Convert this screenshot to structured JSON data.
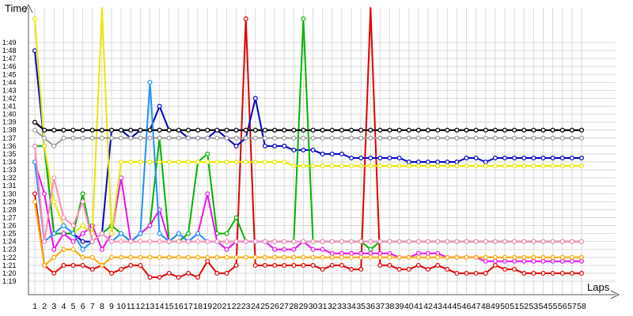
{
  "chart_data": {
    "type": "line",
    "title": "",
    "ylabel": "Time",
    "xlabel": "Laps",
    "grid": true,
    "legend": "none",
    "y_ticks": [
      "1:19",
      "1:20",
      "1:21",
      "1:22",
      "1:23",
      "1:24",
      "1:25",
      "1:26",
      "1:27",
      "1:28",
      "1:29",
      "1:30",
      "1:31",
      "1:32",
      "1:33",
      "1:34",
      "1:35",
      "1:36",
      "1:37",
      "1:38",
      "1:39",
      "1:40",
      "1:41",
      "1:42",
      "1:43",
      "1:44",
      "1:45",
      "1:46",
      "1:47",
      "1:48",
      "1:49"
    ],
    "ylim_seconds": [
      78.5,
      115
    ],
    "x_ticks": [
      "1",
      "2",
      "3",
      "4",
      "5",
      "6",
      "7",
      "8",
      "9",
      "10",
      "11",
      "12",
      "13",
      "14",
      "15",
      "16",
      "17",
      "18",
      "19",
      "20",
      "21",
      "22",
      "23",
      "24",
      "25",
      "26",
      "27",
      "28",
      "29",
      "30",
      "31",
      "32",
      "33",
      "34",
      "35",
      "36",
      "37",
      "38",
      "39",
      "40",
      "41",
      "42",
      "43",
      "44",
      "45",
      "46",
      "47",
      "48",
      "49",
      "50",
      "51",
      "52",
      "53",
      "54",
      "55",
      "56",
      "57",
      "58"
    ],
    "xlim": [
      1,
      58
    ],
    "series": [
      {
        "color": "#e00000",
        "values": [
          90,
          81,
          80,
          81,
          81,
          81,
          80.5,
          81,
          80,
          80.5,
          81,
          81,
          79.5,
          79.5,
          80,
          79.5,
          80,
          79.5,
          81.5,
          80,
          80,
          81,
          112,
          81,
          81,
          81,
          81,
          81,
          81,
          81,
          80.5,
          81,
          81,
          80.5,
          80.5,
          119,
          81,
          81,
          80.5,
          80.5,
          81,
          80.5,
          81,
          80.5,
          80,
          80,
          80,
          80,
          81,
          80.5,
          80.5,
          80,
          80,
          80,
          80,
          80,
          80,
          80
        ]
      },
      {
        "color": "#0000c8",
        "values": [
          108,
          96,
          85,
          85,
          85,
          84,
          84,
          85,
          98,
          98,
          97,
          98,
          98,
          101,
          98,
          98,
          97,
          97,
          97,
          98,
          97,
          96,
          97,
          102,
          96,
          96,
          96,
          95.5,
          95.5,
          95.5,
          95,
          95,
          95,
          94.5,
          94.5,
          94.5,
          94.5,
          94.5,
          94.5,
          94,
          94,
          94,
          94,
          94,
          94,
          94.5,
          94.5,
          94,
          94.5,
          94.5,
          94.5,
          94.5,
          94.5,
          94.5,
          94.5,
          94.5,
          94.5,
          94.5
        ]
      },
      {
        "color": "#00b400",
        "values": [
          96,
          96,
          85,
          85,
          85,
          90,
          84,
          85,
          86,
          85,
          84,
          85,
          86,
          97,
          84,
          84,
          85,
          94,
          95,
          85,
          85,
          87,
          84,
          84,
          84,
          84,
          84,
          84,
          112,
          84,
          84,
          84,
          84,
          84,
          84,
          83,
          84,
          84,
          84,
          84,
          84,
          84,
          84,
          84,
          84,
          84,
          84,
          84,
          84,
          84,
          84,
          84,
          84,
          84,
          84,
          84,
          84,
          84
        ]
      },
      {
        "color": "#ee10ee",
        "values": [
          94,
          90,
          83,
          85,
          84,
          85,
          86,
          83,
          85,
          92,
          84,
          85,
          86,
          88,
          84,
          85,
          84,
          85,
          90,
          84,
          83,
          84,
          84,
          84,
          84,
          83,
          83,
          83,
          84,
          83,
          83,
          82.5,
          82.5,
          82.5,
          82.5,
          82.5,
          82.5,
          82.5,
          82,
          82,
          82.5,
          82.5,
          82.5,
          82,
          82,
          82,
          82,
          81.5,
          81.5,
          81.5,
          81.5,
          81.5,
          81.5,
          81.5,
          81.5,
          81.5,
          81.5,
          81.5
        ]
      },
      {
        "color": "#ffa600",
        "values": [
          89,
          81,
          82,
          83,
          83,
          82,
          82,
          81,
          82,
          82,
          82,
          82,
          82,
          82,
          82,
          82,
          82,
          82,
          82,
          82,
          82,
          82,
          82,
          82,
          82,
          82,
          82,
          82,
          82,
          82,
          82,
          82,
          82,
          82,
          82,
          82,
          82,
          82,
          82,
          82,
          82,
          82,
          82,
          82,
          82,
          82,
          82,
          82,
          82,
          82,
          82,
          82,
          82,
          82,
          82,
          82,
          82,
          82
        ]
      },
      {
        "color": "#e8e800",
        "values": [
          112,
          96,
          89,
          86,
          85,
          86,
          85,
          116,
          85,
          94,
          94,
          94,
          94,
          94,
          94,
          94,
          94,
          94,
          94,
          94,
          94,
          94,
          94,
          94,
          94,
          94,
          94,
          93.5,
          93.5,
          93.5,
          93.5,
          93.5,
          93.5,
          93.5,
          93.5,
          93.5,
          93.5,
          93.5,
          93.5,
          93.5,
          93.5,
          93.5,
          93.5,
          93.5,
          93.5,
          93.5,
          93.5,
          93.5,
          93.5,
          93.5,
          93.5,
          93.5,
          93.5,
          93.5,
          93.5,
          93.5,
          93.5,
          93.5
        ]
      },
      {
        "color": "#1e90ff",
        "values": [
          94,
          84,
          85,
          86,
          85,
          83,
          84,
          85,
          84,
          85,
          84,
          85,
          104,
          85,
          84,
          85,
          84,
          85,
          84,
          84,
          84,
          84,
          84,
          84,
          84,
          84,
          84,
          84,
          84,
          84,
          84,
          84,
          84,
          84,
          84,
          84,
          84,
          84,
          84,
          84,
          84,
          84,
          84,
          84,
          84,
          84,
          84,
          84,
          84,
          84,
          84,
          84,
          84,
          84,
          84,
          84,
          84,
          84
        ]
      },
      {
        "color": "#ff8cb4",
        "values": [
          96,
          84,
          92,
          87,
          86,
          89,
          84,
          85,
          84,
          84,
          84,
          84,
          84,
          84,
          84,
          84,
          84,
          84,
          84,
          84,
          84,
          84,
          84,
          84,
          84,
          84,
          84,
          84,
          84,
          84,
          84,
          84,
          84,
          84,
          84,
          84,
          84,
          84,
          84,
          84,
          84,
          84,
          84,
          84,
          84,
          84,
          84,
          84,
          84,
          84,
          84,
          84,
          84,
          84,
          84,
          84,
          84,
          84
        ]
      },
      {
        "color": "#9a9a9a",
        "values": [
          98,
          97,
          96,
          97,
          97,
          97,
          97,
          97,
          97,
          97,
          97,
          97,
          97,
          97,
          97,
          97,
          97,
          97,
          97,
          97,
          97,
          97,
          97,
          97,
          97,
          97,
          97,
          97,
          97,
          97,
          97,
          97,
          97,
          97,
          97,
          97,
          97,
          97,
          97,
          97,
          97,
          97,
          97,
          97,
          97,
          97,
          97,
          97,
          97,
          97,
          97,
          97,
          97,
          97,
          97,
          97,
          97,
          97
        ]
      },
      {
        "color": "#9a9a50",
        "values": [
          99,
          98,
          98,
          98,
          98,
          98,
          98,
          98,
          98,
          98,
          98,
          98,
          98,
          98,
          98,
          98,
          98,
          98,
          98,
          98,
          98,
          98,
          98,
          98,
          98,
          98,
          98,
          98,
          98,
          98,
          98,
          98,
          98,
          98,
          98,
          98,
          98,
          98,
          98,
          98,
          98,
          98,
          98,
          98,
          98,
          98,
          98,
          98,
          98,
          98,
          98,
          98,
          98,
          98,
          98,
          98,
          98,
          98
        ]
      },
      {
        "color": "#4ab0b0",
        "values": [
          99,
          98,
          98,
          98,
          98,
          98,
          98,
          98,
          98,
          98,
          98,
          98,
          98,
          98,
          98,
          98,
          98,
          98,
          98,
          98,
          98,
          98,
          98,
          98,
          98,
          98,
          98,
          98,
          98,
          98,
          98,
          98,
          98,
          98,
          98,
          98,
          98,
          98,
          98,
          98,
          98,
          98,
          98,
          98,
          98,
          98,
          98,
          98,
          98,
          98,
          98,
          98,
          98,
          98,
          98,
          98,
          98,
          98
        ]
      },
      {
        "color": "#7d3f98",
        "values": [
          99,
          98,
          98,
          98,
          98,
          98,
          98,
          98,
          98,
          98,
          98,
          98,
          98,
          98,
          98,
          98,
          98,
          98,
          98,
          98,
          98,
          98,
          98,
          98,
          98,
          98,
          98,
          98,
          98,
          98,
          98,
          98,
          98,
          98,
          98,
          98,
          98,
          98,
          98,
          98,
          98,
          98,
          98,
          98,
          98,
          98,
          98,
          98,
          98,
          98,
          98,
          98,
          98,
          98,
          98,
          98,
          98,
          98
        ]
      },
      {
        "color": "#000000",
        "values": [
          99,
          98,
          98,
          98,
          98,
          98,
          98,
          98,
          98,
          98,
          98,
          98,
          98,
          98,
          98,
          98,
          98,
          98,
          98,
          98,
          98,
          98,
          98,
          98,
          98,
          98,
          98,
          98,
          98,
          98,
          98,
          98,
          98,
          98,
          98,
          98,
          98,
          98,
          98,
          98,
          98,
          98,
          98,
          98,
          98,
          98,
          98,
          98,
          98,
          98,
          98,
          98,
          98,
          98,
          98,
          98,
          98,
          98
        ]
      }
    ]
  }
}
